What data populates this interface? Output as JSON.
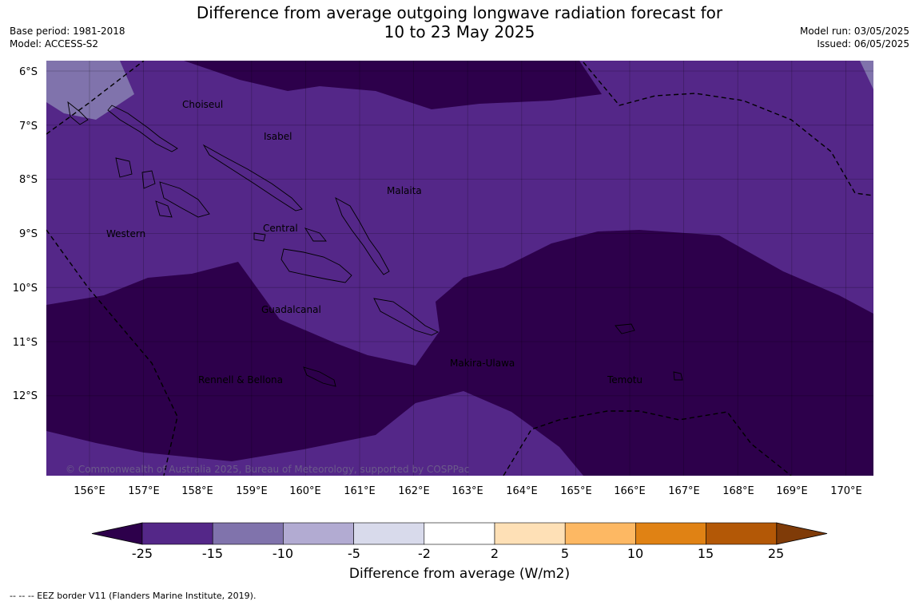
{
  "title_line1": "Difference from average outgoing longwave radiation forecast for",
  "title_line2": "10 to 23 May 2025",
  "base_period": "Base period: 1981-2018",
  "model": "Model: ACCESS-S2",
  "model_run": "Model run: 03/05/2025",
  "issued": "Issued: 06/05/2025",
  "lat_labels": [
    "6°S",
    "7°S",
    "8°S",
    "9°S",
    "10°S",
    "11°S",
    "12°S"
  ],
  "lon_labels": [
    "156°E",
    "157°E",
    "158°E",
    "159°E",
    "160°E",
    "161°E",
    "162°E",
    "163°E",
    "164°E",
    "165°E",
    "166°E",
    "167°E",
    "168°E",
    "169°E",
    "170°E"
  ],
  "places": [
    "Choiseul",
    "Isabel",
    "Malaita",
    "Western",
    "Central",
    "Guadalcanal",
    "Makira-Ulawa",
    "Rennell & Bellona",
    "Temotu"
  ],
  "copyright": "© Commonwealth of Australia 2025, Bureau of Meteorology, supported by COSPPac",
  "colorbar": {
    "ticks": [
      "-25",
      "-15",
      "-10",
      "-5",
      "-2",
      "2",
      "5",
      "10",
      "15",
      "25"
    ],
    "colors": [
      "#2d004b",
      "#542788",
      "#8073ac",
      "#b2abd2",
      "#d8daeb",
      "#ffffff",
      "#fee0b6",
      "#fdb863",
      "#e08214",
      "#b35806",
      "#7f3b08"
    ],
    "label": "Difference from average (W/m2)"
  },
  "footnote": "--  --  -- EEZ border V11 (Flanders Marine Institute, 2019)."
}
